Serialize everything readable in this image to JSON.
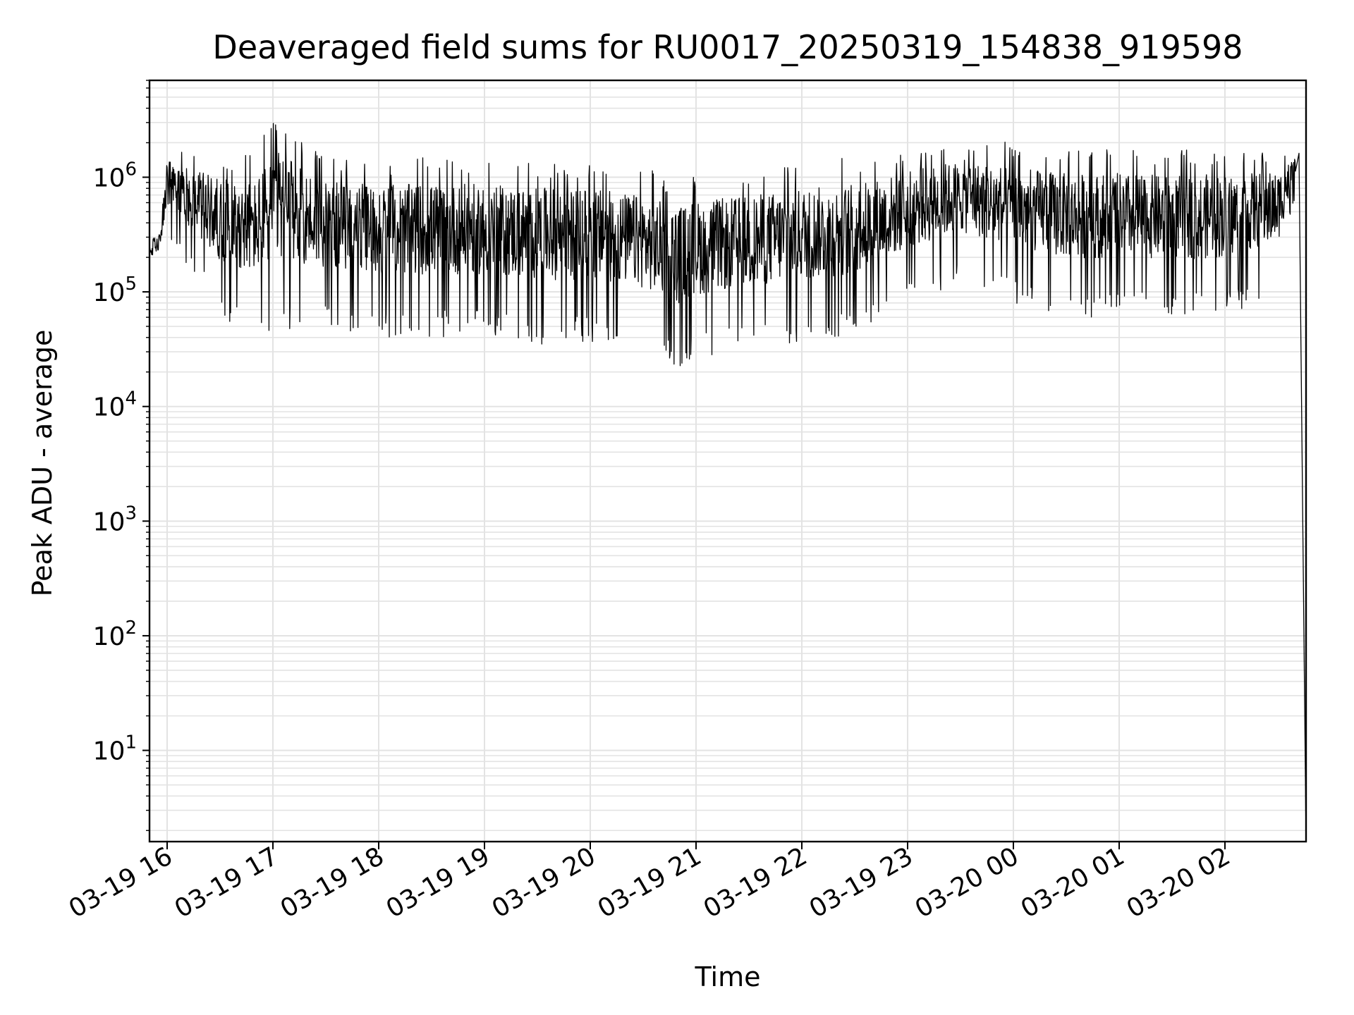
{
  "chart_data": {
    "type": "line",
    "title": "Deaveraged field sums for RU0017_20250319_154838_919598",
    "xlabel": "Time",
    "ylabel": "Peak ADU - average",
    "yscale": "log",
    "ylim": [
      1.6,
      7000000
    ],
    "xlim": [
      "03-19 15:50",
      "03-20 02:46"
    ],
    "grid": true,
    "legend": "none",
    "line_color": "#000000",
    "x_ticks": [
      "03-19 16",
      "03-19 17",
      "03-19 18",
      "03-19 19",
      "03-19 20",
      "03-19 21",
      "03-19 22",
      "03-19 23",
      "03-20 00",
      "03-20 01",
      "03-20 02"
    ],
    "y_ticks": [
      {
        "value": 10,
        "base": "10",
        "exp": "1"
      },
      {
        "value": 100,
        "base": "10",
        "exp": "2"
      },
      {
        "value": 1000,
        "base": "10",
        "exp": "3"
      },
      {
        "value": 10000,
        "base": "10",
        "exp": "4"
      },
      {
        "value": 100000,
        "base": "10",
        "exp": "5"
      },
      {
        "value": 1000000,
        "base": "10",
        "exp": "6"
      }
    ],
    "series": [
      {
        "x": [
          "03-19 15:50",
          "03-19 15:56",
          "03-19 16:00",
          "03-19 16:15",
          "03-19 16:30",
          "03-19 16:50",
          "03-19 17:00",
          "03-19 17:30",
          "03-19 18:00",
          "03-19 18:30",
          "03-19 19:00",
          "03-19 19:30",
          "03-19 20:00",
          "03-19 20:30",
          "03-19 20:50",
          "03-19 21:00",
          "03-19 21:30",
          "03-19 22:00",
          "03-19 22:30",
          "03-19 23:00",
          "03-19 23:30",
          "03-20 00:00",
          "03-20 00:30",
          "03-20 01:00",
          "03-20 01:30",
          "03-20 02:00",
          "03-20 02:30",
          "03-20 02:35",
          "03-20 02:40"
        ],
        "high": [
          300000,
          350000,
          1900000,
          1700000,
          1600000,
          1600000,
          3500000,
          1500000,
          1500000,
          1500000,
          1500000,
          1400000,
          1400000,
          1200000,
          1000000,
          1100000,
          1200000,
          1400000,
          1500000,
          1800000,
          2200000,
          2000000,
          1800000,
          1800000,
          1700000,
          1800000,
          1700000,
          1700000,
          1800000
        ],
        "low": [
          150000,
          200000,
          250000,
          150000,
          60000,
          40000,
          40000,
          50000,
          40000,
          40000,
          40000,
          35000,
          35000,
          30000,
          20000,
          25000,
          30000,
          35000,
          40000,
          80000,
          120000,
          80000,
          60000,
          60000,
          60000,
          60000,
          100000,
          300000,
          700000
        ],
        "end_drop": {
          "x": "03-20 02:46",
          "y": 1.6
        }
      }
    ]
  }
}
